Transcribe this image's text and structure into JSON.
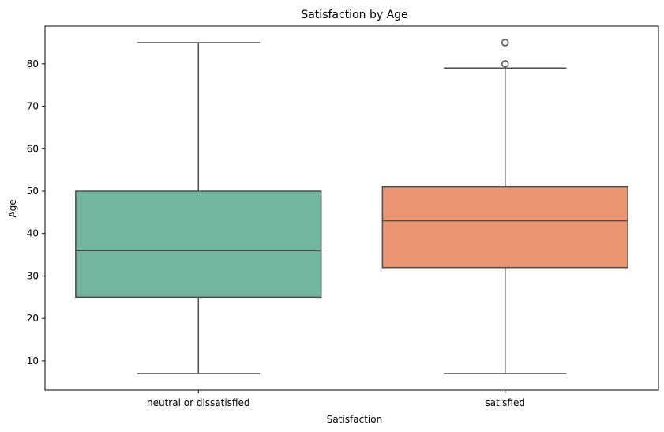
{
  "chart_data": {
    "type": "box",
    "title": "Satisfaction by Age",
    "xlabel": "Satisfaction",
    "ylabel": "Age",
    "ylim": [
      3.1,
      88.9
    ],
    "yticks": [
      10,
      20,
      30,
      40,
      50,
      60,
      70,
      80
    ],
    "grid": false,
    "legend": "none",
    "categories": [
      "neutral or dissatisfied",
      "satisfied"
    ],
    "boxes": [
      {
        "category": "neutral or dissatisfied",
        "whisker_low": 7,
        "q1": 25,
        "median": 36,
        "q3": 50,
        "whisker_high": 85,
        "outliers": [],
        "color": "#72b6a1"
      },
      {
        "category": "satisfied",
        "whisker_low": 7,
        "q1": 32,
        "median": 43,
        "q3": 51,
        "whisker_high": 79,
        "outliers": [
          80,
          85
        ],
        "color": "#e99675"
      }
    ]
  },
  "colors": {
    "line": "#4d4d4d",
    "axis": "#000000"
  }
}
